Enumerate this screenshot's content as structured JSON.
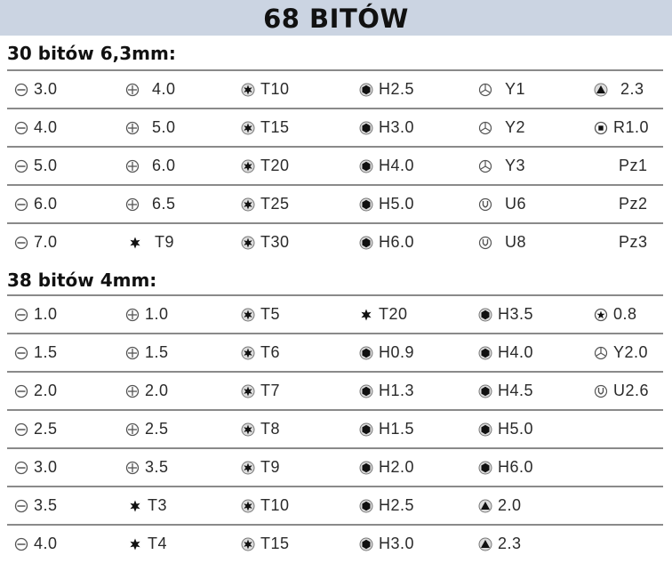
{
  "title": "68 BITÓW",
  "sections": [
    {
      "title": "30 bitów 6,3mm:",
      "rows": [
        [
          {
            "icon": "slot",
            "label": "3.0"
          },
          {
            "icon": "phillips",
            "label": "4.0"
          },
          {
            "icon": "torx",
            "label": "T10"
          },
          {
            "icon": "hex",
            "label": "H2.5"
          },
          {
            "icon": "triwing",
            "label": "Y1"
          },
          {
            "icon": "triangle",
            "label": "2.3"
          }
        ],
        [
          {
            "icon": "slot",
            "label": "4.0"
          },
          {
            "icon": "phillips",
            "label": "5.0"
          },
          {
            "icon": "torx",
            "label": "T15"
          },
          {
            "icon": "hex",
            "label": "H3.0"
          },
          {
            "icon": "triwing",
            "label": "Y2"
          },
          {
            "icon": "square",
            "label": "R1.0"
          }
        ],
        [
          {
            "icon": "slot",
            "label": "5.0"
          },
          {
            "icon": "phillips",
            "label": "6.0"
          },
          {
            "icon": "torx",
            "label": "T20"
          },
          {
            "icon": "hex",
            "label": "H4.0"
          },
          {
            "icon": "triwing",
            "label": "Y3"
          },
          {
            "icon": "none",
            "label": "Pz1"
          }
        ],
        [
          {
            "icon": "slot",
            "label": "6.0"
          },
          {
            "icon": "phillips",
            "label": "6.5"
          },
          {
            "icon": "torx",
            "label": "T25"
          },
          {
            "icon": "hex",
            "label": "H5.0"
          },
          {
            "icon": "u",
            "label": "U6"
          },
          {
            "icon": "none",
            "label": "Pz2"
          }
        ],
        [
          {
            "icon": "slot",
            "label": "7.0"
          },
          {
            "icon": "torx-plain",
            "label": "T9"
          },
          {
            "icon": "torx",
            "label": "T30"
          },
          {
            "icon": "hex",
            "label": "H6.0"
          },
          {
            "icon": "u",
            "label": "U8"
          },
          {
            "icon": "none",
            "label": "Pz3"
          }
        ]
      ]
    },
    {
      "title": "38 bitów 4mm:",
      "rows": [
        [
          {
            "icon": "slot",
            "label": "1.0"
          },
          {
            "icon": "phillips",
            "label": "1.0"
          },
          {
            "icon": "torx",
            "label": "T5"
          },
          {
            "icon": "torx-plain",
            "label": "T20"
          },
          {
            "icon": "hex",
            "label": "H3.5"
          },
          {
            "icon": "pentalobe",
            "label": "0.8"
          }
        ],
        [
          {
            "icon": "slot",
            "label": "1.5"
          },
          {
            "icon": "phillips",
            "label": "1.5"
          },
          {
            "icon": "torx",
            "label": "T6"
          },
          {
            "icon": "hex",
            "label": "H0.9"
          },
          {
            "icon": "hex",
            "label": "H4.0"
          },
          {
            "icon": "triwing",
            "label": "Y2.0"
          }
        ],
        [
          {
            "icon": "slot",
            "label": "2.0"
          },
          {
            "icon": "phillips",
            "label": "2.0"
          },
          {
            "icon": "torx",
            "label": "T7"
          },
          {
            "icon": "hex",
            "label": "H1.3"
          },
          {
            "icon": "hex",
            "label": "H4.5"
          },
          {
            "icon": "u",
            "label": "U2.6"
          }
        ],
        [
          {
            "icon": "slot",
            "label": "2.5"
          },
          {
            "icon": "phillips",
            "label": "2.5"
          },
          {
            "icon": "torx",
            "label": "T8"
          },
          {
            "icon": "hex",
            "label": "H1.5"
          },
          {
            "icon": "hex",
            "label": "H5.0"
          }
        ],
        [
          {
            "icon": "slot",
            "label": "3.0"
          },
          {
            "icon": "phillips",
            "label": "3.5"
          },
          {
            "icon": "torx",
            "label": "T9"
          },
          {
            "icon": "hex",
            "label": "H2.0"
          },
          {
            "icon": "hex",
            "label": "H6.0"
          }
        ],
        [
          {
            "icon": "slot",
            "label": "3.5"
          },
          {
            "icon": "torx-plain",
            "label": "T3"
          },
          {
            "icon": "torx",
            "label": "T10"
          },
          {
            "icon": "hex",
            "label": "H2.5"
          },
          {
            "icon": "triangle",
            "label": "2.0"
          }
        ],
        [
          {
            "icon": "slot",
            "label": "4.0"
          },
          {
            "icon": "torx-plain",
            "label": "T4"
          },
          {
            "icon": "torx",
            "label": "T15"
          },
          {
            "icon": "hex",
            "label": "H3.0"
          },
          {
            "icon": "triangle",
            "label": "2.3"
          }
        ]
      ]
    }
  ]
}
